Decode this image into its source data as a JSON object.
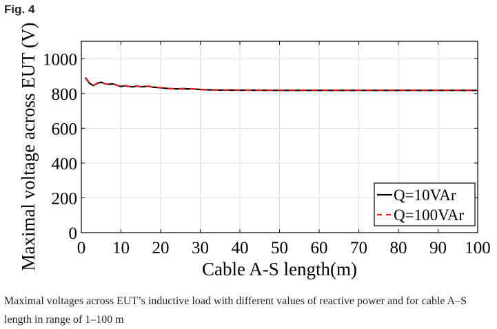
{
  "figure_label": "Fig. 4",
  "caption": "Maximal voltages across EUT’s inductive load with different values of reactive power and for cable A–S length in range of 1–100 m",
  "chart_data": {
    "type": "line",
    "title": "",
    "xlabel": "Cable A-S length(m)",
    "ylabel": "Maximal voltage across EUT (V)",
    "xlim": [
      0,
      100
    ],
    "ylim": [
      0,
      1100
    ],
    "xticks": [
      0,
      10,
      20,
      30,
      40,
      50,
      60,
      70,
      80,
      90,
      100
    ],
    "yticks": [
      0,
      200,
      400,
      600,
      800,
      1000
    ],
    "grid": true,
    "legend_position": "bottom-right",
    "series": [
      {
        "name": "Q=10VAr",
        "color": "#000000",
        "style": "solid",
        "x": [
          1,
          2,
          3,
          4,
          5,
          6,
          7,
          8,
          9,
          10,
          11,
          12,
          13,
          14,
          15,
          16,
          17,
          18,
          19,
          20,
          22,
          24,
          26,
          28,
          30,
          32,
          35,
          40,
          50,
          60,
          70,
          80,
          90,
          100
        ],
        "y": [
          890,
          860,
          845,
          858,
          865,
          855,
          853,
          855,
          847,
          840,
          845,
          840,
          838,
          843,
          838,
          840,
          842,
          836,
          835,
          833,
          828,
          826,
          827,
          826,
          823,
          821,
          820,
          819,
          818,
          818,
          818,
          818,
          818,
          818
        ]
      },
      {
        "name": "Q=100VAr",
        "color": "#e8211d",
        "style": "dashed",
        "x": [
          1,
          2,
          3,
          4,
          5,
          6,
          7,
          8,
          9,
          10,
          11,
          12,
          13,
          14,
          15,
          16,
          17,
          18,
          19,
          20,
          22,
          24,
          26,
          28,
          30,
          32,
          35,
          40,
          50,
          60,
          70,
          80,
          90,
          100
        ],
        "y": [
          893,
          862,
          847,
          860,
          866,
          856,
          854,
          856,
          848,
          841,
          846,
          841,
          839,
          844,
          839,
          841,
          843,
          837,
          836,
          834,
          829,
          827,
          828,
          827,
          824,
          822,
          821,
          820,
          819,
          819,
          819,
          819,
          819,
          819
        ]
      }
    ]
  }
}
